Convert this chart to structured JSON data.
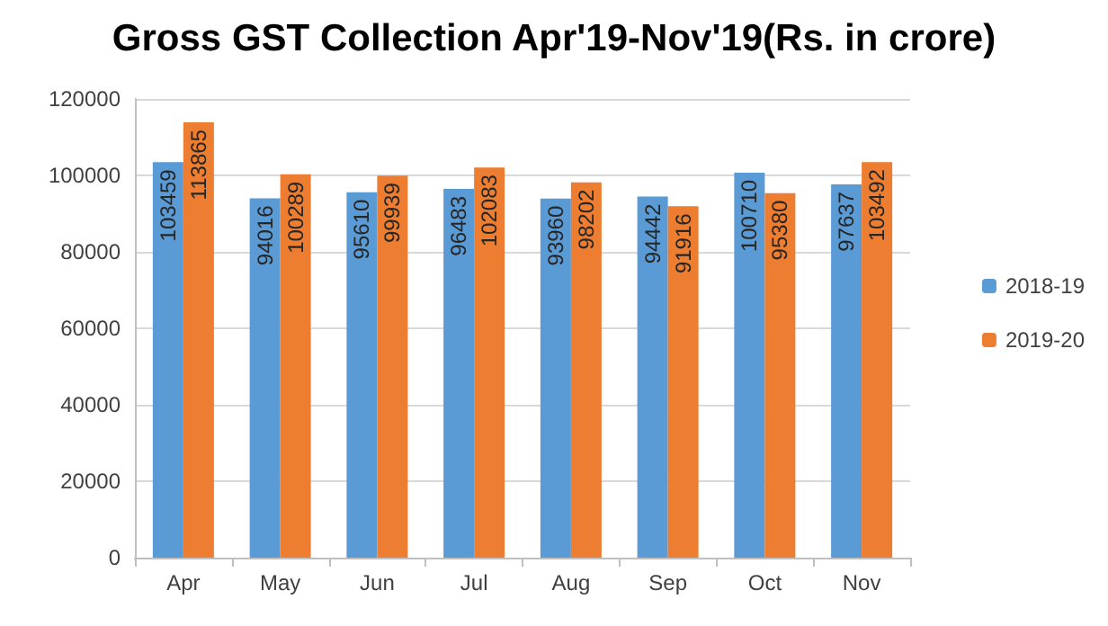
{
  "chart_data": {
    "type": "bar",
    "title": "Gross GST Collection Apr'19-Nov'19(Rs. in crore)",
    "categories": [
      "Apr",
      "May",
      "Jun",
      "Jul",
      "Aug",
      "Sep",
      "Oct",
      "Nov"
    ],
    "series": [
      {
        "name": "2018-19",
        "color": "#5b9bd5",
        "values": [
          103459,
          94016,
          95610,
          96483,
          93960,
          94442,
          100710,
          97637
        ]
      },
      {
        "name": "2019-20",
        "color": "#ed7d31",
        "values": [
          113865,
          100289,
          99939,
          102083,
          98202,
          91916,
          95380,
          103492
        ]
      }
    ],
    "ylim": [
      0,
      120000
    ],
    "yticks": [
      0,
      20000,
      40000,
      60000,
      80000,
      100000,
      120000
    ],
    "grid": "y",
    "legend": "right",
    "data_labels": true
  }
}
